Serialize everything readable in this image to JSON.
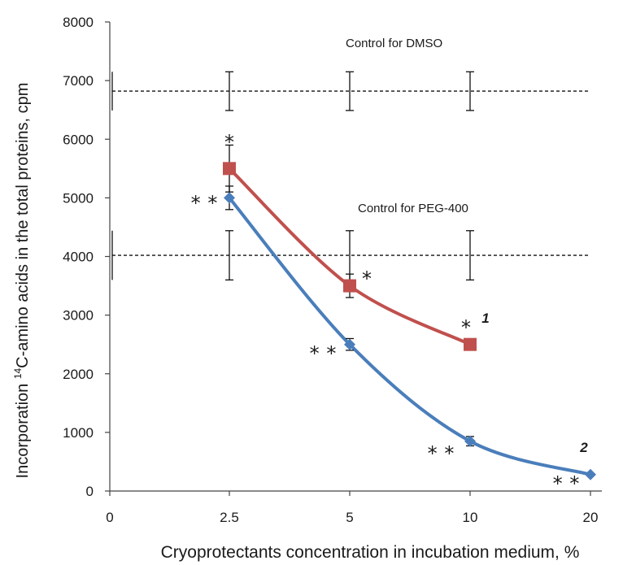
{
  "chart_data": {
    "type": "line",
    "xlabel": "Cryoprotectants concentration in incubation medium, %",
    "ylabel_prefix": "Incorporation ",
    "ylabel_sup": "14",
    "ylabel_suffix": "C-amino acids in the total proteins, cpm",
    "x_categories": [
      "0",
      "2.5",
      "5",
      "10",
      "20"
    ],
    "y_ticks": [
      0,
      1000,
      2000,
      3000,
      4000,
      5000,
      6000,
      7000,
      8000
    ],
    "ylim": [
      0,
      8000
    ],
    "grid": false,
    "series": [
      {
        "name": "1",
        "color": "#c0504d",
        "marker": "square",
        "points": [
          {
            "x": "2.5",
            "y": 5500,
            "err": 400,
            "stars": "*"
          },
          {
            "x": "5",
            "y": 3500,
            "err": 200,
            "stars": "*"
          },
          {
            "x": "10",
            "y": 2500,
            "err": 0,
            "stars": "*"
          }
        ]
      },
      {
        "name": "2",
        "color": "#4a7ebb",
        "marker": "diamond",
        "points": [
          {
            "x": "2.5",
            "y": 5000,
            "err": 200,
            "stars": "**"
          },
          {
            "x": "5",
            "y": 2500,
            "err": 100,
            "stars": "**"
          },
          {
            "x": "10",
            "y": 850,
            "err": 80,
            "stars": "**"
          },
          {
            "x": "20",
            "y": 280,
            "err": 0,
            "stars": "**"
          }
        ]
      }
    ],
    "reference_lines": [
      {
        "label": "Control for DMSO",
        "y": 6820,
        "err": 330
      },
      {
        "label": "Control for PEG-400",
        "y": 4020,
        "err": 420
      }
    ]
  }
}
